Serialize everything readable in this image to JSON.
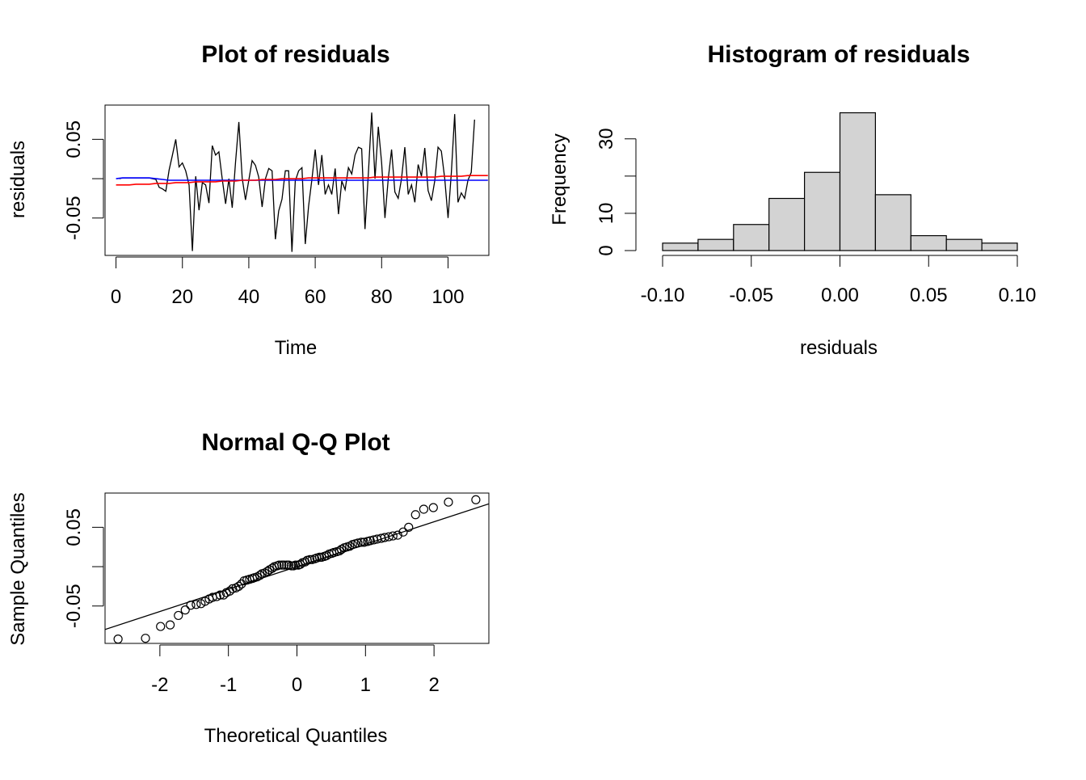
{
  "chart_data": [
    {
      "type": "line",
      "title": "Plot of residuals",
      "xlabel": "Time",
      "ylabel": "residuals",
      "xlim": [
        -3.3,
        112.3
      ],
      "ylim": [
        -0.0975,
        0.0935
      ],
      "x_ticks": [
        0,
        20,
        40,
        60,
        80,
        100
      ],
      "x_tick_labels": [
        "0",
        "20",
        "40",
        "60",
        "80",
        "100"
      ],
      "y_ticks": [
        -0.05,
        0,
        0.05
      ],
      "y_tick_labels": [
        "-0.05",
        "",
        "0.05"
      ],
      "series": [
        {
          "color": "#000000",
          "x": [
            1,
            2,
            3,
            4,
            5,
            6,
            7,
            8,
            9,
            10,
            11,
            12,
            13,
            14,
            15,
            16,
            17,
            18,
            19,
            20,
            21,
            22,
            23,
            24,
            25,
            26,
            27,
            28,
            29,
            30,
            31,
            32,
            33,
            34,
            35,
            36,
            37,
            38,
            39,
            40,
            41,
            42,
            43,
            44,
            45,
            46,
            47,
            48,
            49,
            50,
            51,
            52,
            53,
            54,
            55,
            56,
            57,
            58,
            59,
            60,
            61,
            62,
            63,
            64,
            65,
            66,
            67,
            68,
            69,
            70,
            71,
            72,
            73,
            74,
            75,
            76,
            77,
            78,
            79,
            80,
            81,
            82,
            83,
            84,
            85,
            86,
            87,
            88,
            89,
            90,
            91,
            92,
            93,
            94,
            95,
            96,
            97,
            98,
            99,
            100,
            101,
            102,
            103,
            104,
            105,
            106,
            107,
            108
          ],
          "y": [
            0.0,
            0.001,
            0.001,
            0.001,
            0.001,
            0.001,
            0.001,
            0.001,
            0.001,
            0.001,
            0.0,
            -0.001,
            -0.011,
            -0.013,
            -0.016,
            0.011,
            0.03,
            0.05,
            0.015,
            0.02,
            0.01,
            -0.008,
            -0.092,
            0.003,
            -0.04,
            -0.005,
            -0.008,
            -0.031,
            0.042,
            0.03,
            0.034,
            0.0,
            -0.032,
            0.0,
            -0.037,
            0.021,
            0.072,
            0.001,
            -0.027,
            -0.002,
            0.023,
            0.017,
            0.002,
            -0.036,
            0.0,
            0.013,
            0.01,
            -0.077,
            -0.041,
            -0.026,
            0.01,
            0.01,
            -0.093,
            -0.003,
            0.01,
            0.014,
            -0.083,
            -0.035,
            -0.001,
            0.037,
            -0.008,
            0.03,
            -0.02,
            -0.008,
            -0.02,
            0.013,
            -0.045,
            -0.003,
            -0.014,
            0.014,
            0.006,
            0.03,
            0.04,
            0.038,
            -0.064,
            0.005,
            0.084,
            0.0,
            0.066,
            0.02,
            -0.05,
            0.0,
            0.037,
            -0.017,
            -0.025,
            0.0,
            0.04,
            -0.02,
            -0.008,
            -0.03,
            0.018,
            0.003,
            0.039,
            -0.015,
            -0.028,
            -0.003,
            0.04,
            0.035,
            0.0,
            -0.05,
            0.008,
            0.082,
            -0.03,
            -0.018,
            -0.025,
            -0.002,
            0.008,
            0.075
          ]
        },
        {
          "color": "#0000ff",
          "x": [
            0,
            2,
            4,
            6,
            8,
            10,
            12,
            14,
            16,
            18,
            20,
            22,
            24,
            26,
            28,
            30,
            32,
            34,
            36,
            38,
            40,
            42,
            44,
            46,
            48,
            50,
            52,
            54,
            56,
            58,
            60,
            62,
            64,
            66,
            68,
            70,
            72,
            74,
            76,
            78,
            80,
            82,
            84,
            86,
            88,
            90,
            92,
            94,
            96,
            98,
            100,
            102,
            104,
            106,
            108,
            110,
            112
          ],
          "y": [
            0.0,
            0.001,
            0.001,
            0.001,
            0.001,
            0.001,
            0.0,
            -0.001,
            -0.002,
            -0.002,
            -0.002,
            -0.002,
            -0.002,
            -0.002,
            -0.002,
            -0.002,
            -0.002,
            -0.002,
            -0.002,
            -0.002,
            -0.002,
            -0.002,
            -0.002,
            -0.002,
            -0.002,
            -0.002,
            -0.002,
            -0.002,
            -0.002,
            -0.002,
            -0.002,
            -0.002,
            -0.002,
            -0.002,
            -0.002,
            -0.002,
            -0.002,
            -0.002,
            -0.002,
            -0.002,
            -0.002,
            -0.002,
            -0.002,
            -0.002,
            -0.002,
            -0.002,
            -0.002,
            -0.002,
            -0.002,
            -0.002,
            -0.002,
            -0.002,
            -0.002,
            -0.002,
            -0.002,
            -0.002,
            -0.002
          ]
        },
        {
          "color": "#ff0000",
          "x": [
            0,
            2,
            4,
            6,
            8,
            10,
            12,
            14,
            16,
            18,
            20,
            22,
            24,
            26,
            28,
            30,
            32,
            34,
            36,
            38,
            40,
            42,
            44,
            46,
            48,
            50,
            52,
            54,
            56,
            58,
            60,
            62,
            64,
            66,
            68,
            70,
            72,
            74,
            76,
            78,
            80,
            82,
            84,
            86,
            88,
            90,
            92,
            94,
            96,
            98,
            100,
            102,
            104,
            106,
            108,
            110,
            112
          ],
          "y": [
            -0.008,
            -0.008,
            -0.008,
            -0.007,
            -0.007,
            -0.007,
            -0.006,
            -0.006,
            -0.006,
            -0.005,
            -0.005,
            -0.005,
            -0.004,
            -0.004,
            -0.004,
            -0.004,
            -0.003,
            -0.003,
            -0.003,
            -0.002,
            -0.002,
            -0.002,
            -0.001,
            -0.001,
            -0.001,
            0.0,
            0.0,
            0.0,
            0.0,
            0.001,
            0.001,
            0.001,
            0.001,
            0.001,
            0.001,
            0.001,
            0.001,
            0.001,
            0.001,
            0.002,
            0.002,
            0.002,
            0.002,
            0.002,
            0.002,
            0.002,
            0.002,
            0.002,
            0.002,
            0.003,
            0.003,
            0.003,
            0.003,
            0.004,
            0.004,
            0.004,
            0.004
          ]
        }
      ]
    },
    {
      "type": "bar",
      "title": "Histogram of residuals",
      "xlabel": "residuals",
      "ylabel": "Frequency",
      "xlim": [
        -0.11,
        0.11
      ],
      "ylim": [
        0,
        39.5
      ],
      "bin_edges": [
        -0.1,
        -0.08,
        -0.06,
        -0.04,
        -0.02,
        0,
        0.02,
        0.04,
        0.06,
        0.08,
        0.1
      ],
      "values": [
        2,
        3,
        7,
        14,
        21,
        37,
        15,
        4,
        3,
        2
      ],
      "x_ticks": [
        -0.1,
        -0.05,
        0,
        0.05,
        0.1
      ],
      "x_tick_labels": [
        "-0.10",
        "-0.05",
        "0.00",
        "0.05",
        "0.10"
      ],
      "y_ticks": [
        0,
        10,
        20,
        30
      ],
      "y_tick_labels": [
        "0",
        "10",
        "",
        "30"
      ],
      "bar_color": "#d3d3d3"
    },
    {
      "type": "scatter",
      "title": "Normal Q-Q Plot",
      "xlabel": "Theoretical Quantiles",
      "ylabel": "Sample Quantiles",
      "xlim": [
        -2.8,
        2.8
      ],
      "ylim": [
        -0.0975,
        0.0935
      ],
      "x_ticks": [
        -2,
        -1,
        0,
        1,
        2
      ],
      "x_tick_labels": [
        "-2",
        "-1",
        "0",
        "1",
        "2"
      ],
      "y_ticks": [
        -0.05,
        0,
        0.05
      ],
      "y_tick_labels": [
        "-0.05",
        "",
        "0.05"
      ],
      "x": [
        -2.61,
        -2.21,
        -1.99,
        -1.85,
        -1.73,
        -1.63,
        -1.55,
        -1.47,
        -1.4,
        -1.34,
        -1.28,
        -1.23,
        -1.17,
        -1.12,
        -1.07,
        -1.03,
        -0.98,
        -0.94,
        -0.89,
        -0.85,
        -0.81,
        -0.77,
        -0.73,
        -0.69,
        -0.65,
        -0.62,
        -0.58,
        -0.54,
        -0.51,
        -0.47,
        -0.43,
        -0.4,
        -0.36,
        -0.33,
        -0.29,
        -0.26,
        -0.22,
        -0.19,
        -0.15,
        -0.12,
        -0.08,
        -0.05,
        -0.02,
        0.02,
        0.05,
        0.08,
        0.12,
        0.15,
        0.19,
        0.22,
        0.26,
        0.29,
        0.33,
        0.36,
        0.4,
        0.43,
        0.47,
        0.51,
        0.54,
        0.58,
        0.62,
        0.65,
        0.69,
        0.73,
        0.77,
        0.81,
        0.85,
        0.89,
        0.94,
        0.98,
        1.03,
        1.07,
        1.12,
        1.17,
        1.23,
        1.28,
        1.34,
        1.4,
        1.47,
        1.55,
        1.63,
        1.73,
        1.85,
        1.99,
        2.21,
        2.61
      ],
      "y": [
        -0.092,
        -0.091,
        -0.076,
        -0.074,
        -0.062,
        -0.055,
        -0.049,
        -0.048,
        -0.047,
        -0.044,
        -0.041,
        -0.039,
        -0.038,
        -0.036,
        -0.036,
        -0.033,
        -0.031,
        -0.028,
        -0.027,
        -0.025,
        -0.022,
        -0.018,
        -0.017,
        -0.016,
        -0.015,
        -0.014,
        -0.013,
        -0.011,
        -0.009,
        -0.008,
        -0.006,
        -0.004,
        -0.002,
        0.0,
        0.001,
        0.002,
        0.002,
        0.002,
        0.002,
        0.002,
        0.001,
        0.001,
        0.002,
        0.002,
        0.003,
        0.005,
        0.006,
        0.008,
        0.009,
        0.009,
        0.01,
        0.011,
        0.012,
        0.012,
        0.013,
        0.014,
        0.016,
        0.017,
        0.018,
        0.019,
        0.02,
        0.022,
        0.024,
        0.025,
        0.026,
        0.028,
        0.029,
        0.03,
        0.031,
        0.031,
        0.032,
        0.033,
        0.034,
        0.035,
        0.036,
        0.037,
        0.038,
        0.039,
        0.04,
        0.044,
        0.05,
        0.066,
        0.073,
        0.075,
        0.082,
        0.085
      ],
      "ref_line": {
        "intercept": 0.0,
        "slope": 0.0285
      }
    }
  ]
}
